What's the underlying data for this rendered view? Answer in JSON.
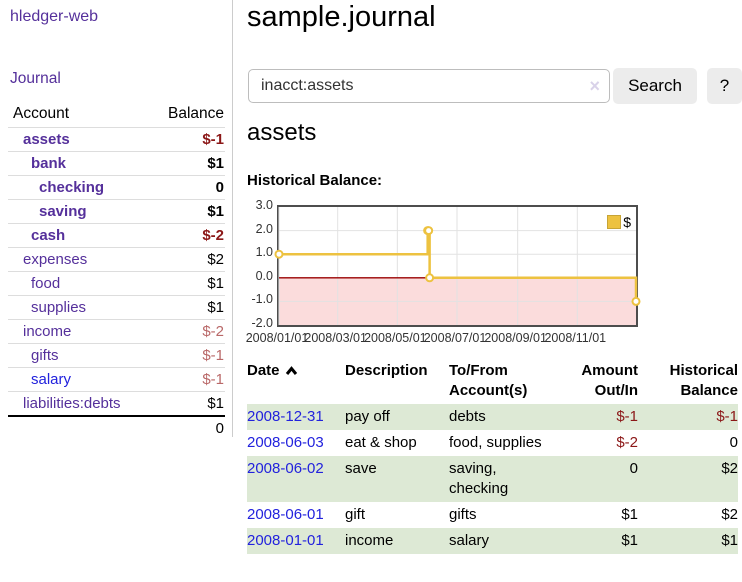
{
  "app": {
    "title": "hledger-web"
  },
  "sidebar": {
    "journal_link": "Journal",
    "accounts_table": {
      "headers": [
        "Account",
        "Balance"
      ],
      "rows": [
        {
          "name": "assets",
          "level": 1,
          "bold": true,
          "balance": "$-1",
          "negative": true,
          "link_color": "purple"
        },
        {
          "name": "bank",
          "level": 2,
          "bold": true,
          "balance": "$1",
          "negative": false,
          "link_color": "purple"
        },
        {
          "name": "checking",
          "level": 3,
          "bold": true,
          "balance": "0",
          "negative": false,
          "link_color": "purple"
        },
        {
          "name": "saving",
          "level": 3,
          "bold": true,
          "balance": "$1",
          "negative": false,
          "link_color": "purple"
        },
        {
          "name": "cash",
          "level": 2,
          "bold": true,
          "balance": "$-2",
          "negative": true,
          "link_color": "purple"
        },
        {
          "name": "expenses",
          "level": 1,
          "bold": false,
          "balance": "$2",
          "negative": false,
          "link_color": "purple"
        },
        {
          "name": "food",
          "level": 2,
          "bold": false,
          "balance": "$1",
          "negative": false,
          "link_color": "purple"
        },
        {
          "name": "supplies",
          "level": 2,
          "bold": false,
          "balance": "$1",
          "negative": false,
          "link_color": "purple"
        },
        {
          "name": "income",
          "level": 1,
          "bold": false,
          "balance": "$-2",
          "negative": true,
          "link_color": "purple"
        },
        {
          "name": "gifts",
          "level": 2,
          "bold": false,
          "balance": "$-1",
          "negative": true,
          "link_color": "purple"
        },
        {
          "name": "salary",
          "level": 2,
          "bold": false,
          "balance": "$-1",
          "negative": true,
          "link_color": "blue"
        },
        {
          "name": "liabilities:debts",
          "level": 1,
          "bold": false,
          "balance": "$1",
          "negative": false,
          "link_color": "purple"
        }
      ],
      "total": "0"
    }
  },
  "header": {
    "title": "sample.journal"
  },
  "search": {
    "value": "inacct:assets",
    "clear_icon": "×",
    "button": "Search",
    "help_button": "?"
  },
  "account_page": {
    "heading": "assets",
    "chart_label": "Historical Balance:"
  },
  "chart_data": {
    "type": "line",
    "step": true,
    "title": "Historical Balance",
    "x_range": [
      "2008-01-01",
      "2008-12-31"
    ],
    "ylim": [
      -2.0,
      3.0
    ],
    "yticks": [
      "3.0",
      "2.0",
      "1.0",
      "0.0",
      "-1.0",
      "-2.0"
    ],
    "xticks": [
      "2008/01/01",
      "2008/03/01",
      "2008/05/01",
      "2008/07/01",
      "2008/09/01",
      "2008/11/01"
    ],
    "series": [
      {
        "name": "$",
        "color": "#EDC240",
        "points": [
          [
            "2008-01-01",
            1
          ],
          [
            "2008-06-01",
            2
          ],
          [
            "2008-06-02",
            2
          ],
          [
            "2008-06-03",
            0
          ],
          [
            "2008-12-31",
            -1
          ]
        ]
      }
    ],
    "grid": true,
    "legend_position": "top-right",
    "negative_region_color": "#fbdcdc",
    "zero_line_color": "#990000"
  },
  "register_table": {
    "columns": [
      {
        "label": "Date",
        "sorted": "asc"
      },
      {
        "label": "Description"
      },
      {
        "label": "To/From Account(s)"
      },
      {
        "label": "Amount Out/In"
      },
      {
        "label": "Historical Balance"
      }
    ],
    "rows": [
      {
        "date": "2008-12-31",
        "description": "pay off",
        "accounts_lines": [
          "debts"
        ],
        "amount": "$-1",
        "amount_negative": true,
        "balance": "$-1",
        "balance_negative": true
      },
      {
        "date": "2008-06-03",
        "description": "eat & shop",
        "accounts_lines": [
          "food, supplies"
        ],
        "amount": "$-2",
        "amount_negative": true,
        "balance": "0",
        "balance_negative": false
      },
      {
        "date": "2008-06-02",
        "description": "save",
        "accounts_lines": [
          "saving,",
          "checking"
        ],
        "amount": "0",
        "amount_negative": false,
        "balance": "$2",
        "balance_negative": false
      },
      {
        "date": "2008-06-01",
        "description": "gift",
        "accounts_lines": [
          "gifts"
        ],
        "amount": "$1",
        "amount_negative": false,
        "balance": "$2",
        "balance_negative": false
      },
      {
        "date": "2008-01-01",
        "description": "income",
        "accounts_lines": [
          "salary"
        ],
        "amount": "$1",
        "amount_negative": false,
        "balance": "$1",
        "balance_negative": false
      }
    ]
  },
  "colors": {
    "link_purple": "#55309b",
    "link_blue": "#2222dd",
    "negative_dark": "#8b1717",
    "negative_light": "#b96868",
    "row_green": "#dde9d5",
    "chart_line": "#EDC240",
    "chart_negative_fill": "#fbdcdc",
    "chart_zero_line": "#990000",
    "button_bg": "#ececec"
  }
}
